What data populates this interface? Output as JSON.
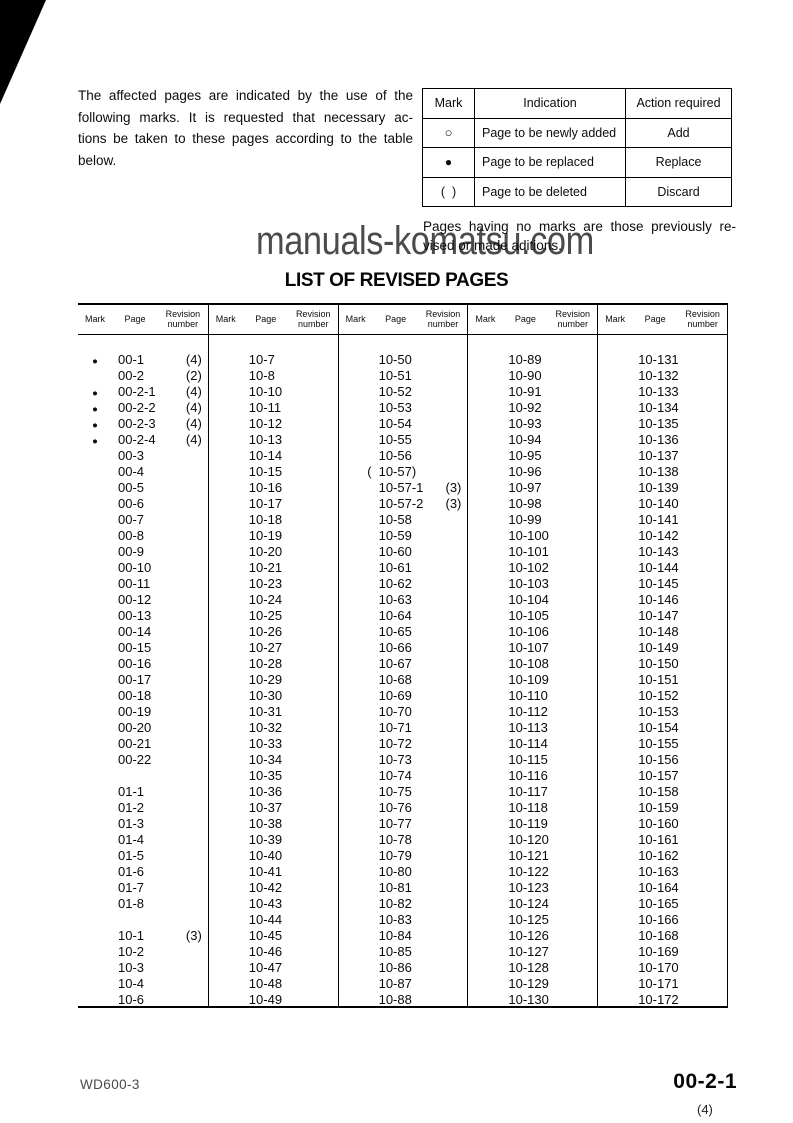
{
  "intro": {
    "lines": [
      "The affected pages are indicated by the use of the",
      "following marks. It is requested that necessary ac-",
      "tions be taken to these pages according to the table",
      "below."
    ]
  },
  "marks_table": {
    "headers": {
      "mark": "Mark",
      "indication": "Indication",
      "action": "Action required"
    },
    "rows": [
      {
        "mark": "○",
        "indication": "Page to be newly added",
        "action": "Add"
      },
      {
        "mark": "●",
        "indication": "Page to be replaced",
        "action": "Replace"
      },
      {
        "mark": "(  )",
        "indication": "Page to be deleted",
        "action": "Discard"
      }
    ]
  },
  "note": {
    "lines": [
      "Pages having no marks are those previously re-",
      "vised or made aditions."
    ]
  },
  "watermark": "manuals-komatsu.com",
  "list_title": "LIST OF REVISED PAGES",
  "revised_table": {
    "column_headers": {
      "mark": "Mark",
      "page": "Page",
      "revision_line1": "Revision",
      "revision_line2": "number"
    },
    "groups": [
      [
        [
          "●",
          "00-1",
          "(4)"
        ],
        [
          "",
          "00-2",
          "(2)"
        ],
        [
          "●",
          "00-2-1",
          "(4)"
        ],
        [
          "●",
          "00-2-2",
          "(4)"
        ],
        [
          "●",
          "00-2-3",
          "(4)"
        ],
        [
          "●",
          "00-2-4",
          "(4)"
        ],
        [
          "",
          "00-3",
          ""
        ],
        [
          "",
          "00-4",
          ""
        ],
        [
          "",
          "00-5",
          ""
        ],
        [
          "",
          "00-6",
          ""
        ],
        [
          "",
          "00-7",
          ""
        ],
        [
          "",
          "00-8",
          ""
        ],
        [
          "",
          "00-9",
          ""
        ],
        [
          "",
          "00-10",
          ""
        ],
        [
          "",
          "00-11",
          ""
        ],
        [
          "",
          "00-12",
          ""
        ],
        [
          "",
          "00-13",
          ""
        ],
        [
          "",
          "00-14",
          ""
        ],
        [
          "",
          "00-15",
          ""
        ],
        [
          "",
          "00-16",
          ""
        ],
        [
          "",
          "00-17",
          ""
        ],
        [
          "",
          "00-18",
          ""
        ],
        [
          "",
          "00-19",
          ""
        ],
        [
          "",
          "00-20",
          ""
        ],
        [
          "",
          "00-21",
          ""
        ],
        [
          "",
          "00-22",
          ""
        ],
        [
          "",
          "",
          ""
        ],
        [
          "",
          "01-1",
          ""
        ],
        [
          "",
          "01-2",
          ""
        ],
        [
          "",
          "01-3",
          ""
        ],
        [
          "",
          "01-4",
          ""
        ],
        [
          "",
          "01-5",
          ""
        ],
        [
          "",
          "01-6",
          ""
        ],
        [
          "",
          "01-7",
          ""
        ],
        [
          "",
          "01-8",
          ""
        ],
        [
          "",
          "",
          ""
        ],
        [
          "",
          "10-1",
          "(3)"
        ],
        [
          "",
          "10-2",
          ""
        ],
        [
          "",
          "10-3",
          ""
        ],
        [
          "",
          "10-4",
          ""
        ],
        [
          "",
          "10-6",
          ""
        ]
      ],
      [
        [
          "",
          "10-7",
          ""
        ],
        [
          "",
          "10-8",
          ""
        ],
        [
          "",
          "10-10",
          ""
        ],
        [
          "",
          "10-11",
          ""
        ],
        [
          "",
          "10-12",
          ""
        ],
        [
          "",
          "10-13",
          ""
        ],
        [
          "",
          "10-14",
          ""
        ],
        [
          "",
          "10-15",
          ""
        ],
        [
          "",
          "10-16",
          ""
        ],
        [
          "",
          "10-17",
          ""
        ],
        [
          "",
          "10-18",
          ""
        ],
        [
          "",
          "10-19",
          ""
        ],
        [
          "",
          "10-20",
          ""
        ],
        [
          "",
          "10-21",
          ""
        ],
        [
          "",
          "10-23",
          ""
        ],
        [
          "",
          "10-24",
          ""
        ],
        [
          "",
          "10-25",
          ""
        ],
        [
          "",
          "10-26",
          ""
        ],
        [
          "",
          "10-27",
          ""
        ],
        [
          "",
          "10-28",
          ""
        ],
        [
          "",
          "10-29",
          ""
        ],
        [
          "",
          "10-30",
          ""
        ],
        [
          "",
          "10-31",
          ""
        ],
        [
          "",
          "10-32",
          ""
        ],
        [
          "",
          "10-33",
          ""
        ],
        [
          "",
          "10-34",
          ""
        ],
        [
          "",
          "10-35",
          ""
        ],
        [
          "",
          "10-36",
          ""
        ],
        [
          "",
          "10-37",
          ""
        ],
        [
          "",
          "10-38",
          ""
        ],
        [
          "",
          "10-39",
          ""
        ],
        [
          "",
          "10-40",
          ""
        ],
        [
          "",
          "10-41",
          ""
        ],
        [
          "",
          "10-42",
          ""
        ],
        [
          "",
          "10-43",
          ""
        ],
        [
          "",
          "10-44",
          ""
        ],
        [
          "",
          "10-45",
          ""
        ],
        [
          "",
          "10-46",
          ""
        ],
        [
          "",
          "10-47",
          ""
        ],
        [
          "",
          "10-48",
          ""
        ],
        [
          "",
          "10-49",
          ""
        ]
      ],
      [
        [
          "",
          "10-50",
          ""
        ],
        [
          "",
          "10-51",
          ""
        ],
        [
          "",
          "10-52",
          ""
        ],
        [
          "",
          "10-53",
          ""
        ],
        [
          "",
          "10-54",
          ""
        ],
        [
          "",
          "10-55",
          ""
        ],
        [
          "",
          "10-56",
          ""
        ],
        [
          "(",
          "10-57)",
          ""
        ],
        [
          "",
          "10-57-1",
          "(3)"
        ],
        [
          "",
          "10-57-2",
          "(3)"
        ],
        [
          "",
          "10-58",
          ""
        ],
        [
          "",
          "10-59",
          ""
        ],
        [
          "",
          "10-60",
          ""
        ],
        [
          "",
          "10-61",
          ""
        ],
        [
          "",
          "10-62",
          ""
        ],
        [
          "",
          "10-63",
          ""
        ],
        [
          "",
          "10-64",
          ""
        ],
        [
          "",
          "10-65",
          ""
        ],
        [
          "",
          "10-66",
          ""
        ],
        [
          "",
          "10-67",
          ""
        ],
        [
          "",
          "10-68",
          ""
        ],
        [
          "",
          "10-69",
          ""
        ],
        [
          "",
          "10-70",
          ""
        ],
        [
          "",
          "10-71",
          ""
        ],
        [
          "",
          "10-72",
          ""
        ],
        [
          "",
          "10-73",
          ""
        ],
        [
          "",
          "10-74",
          ""
        ],
        [
          "",
          "10-75",
          ""
        ],
        [
          "",
          "10-76",
          ""
        ],
        [
          "",
          "10-77",
          ""
        ],
        [
          "",
          "10-78",
          ""
        ],
        [
          "",
          "10-79",
          ""
        ],
        [
          "",
          "10-80",
          ""
        ],
        [
          "",
          "10-81",
          ""
        ],
        [
          "",
          "10-82",
          ""
        ],
        [
          "",
          "10-83",
          ""
        ],
        [
          "",
          "10-84",
          ""
        ],
        [
          "",
          "10-85",
          ""
        ],
        [
          "",
          "10-86",
          ""
        ],
        [
          "",
          "10-87",
          ""
        ],
        [
          "",
          "10-88",
          ""
        ]
      ],
      [
        [
          "",
          "10-89",
          ""
        ],
        [
          "",
          "10-90",
          ""
        ],
        [
          "",
          "10-91",
          ""
        ],
        [
          "",
          "10-92",
          ""
        ],
        [
          "",
          "10-93",
          ""
        ],
        [
          "",
          "10-94",
          ""
        ],
        [
          "",
          "10-95",
          ""
        ],
        [
          "",
          "10-96",
          ""
        ],
        [
          "",
          "10-97",
          ""
        ],
        [
          "",
          "10-98",
          ""
        ],
        [
          "",
          "10-99",
          ""
        ],
        [
          "",
          "10-100",
          ""
        ],
        [
          "",
          "10-101",
          ""
        ],
        [
          "",
          "10-102",
          ""
        ],
        [
          "",
          "10-103",
          ""
        ],
        [
          "",
          "10-104",
          ""
        ],
        [
          "",
          "10-105",
          ""
        ],
        [
          "",
          "10-106",
          ""
        ],
        [
          "",
          "10-107",
          ""
        ],
        [
          "",
          "10-108",
          ""
        ],
        [
          "",
          "10-109",
          ""
        ],
        [
          "",
          "10-110",
          ""
        ],
        [
          "",
          "10-112",
          ""
        ],
        [
          "",
          "10-113",
          ""
        ],
        [
          "",
          "10-114",
          ""
        ],
        [
          "",
          "10-115",
          ""
        ],
        [
          "",
          "10-116",
          ""
        ],
        [
          "",
          "10-117",
          ""
        ],
        [
          "",
          "10-118",
          ""
        ],
        [
          "",
          "10-119",
          ""
        ],
        [
          "",
          "10-120",
          ""
        ],
        [
          "",
          "10-121",
          ""
        ],
        [
          "",
          "10-122",
          ""
        ],
        [
          "",
          "10-123",
          ""
        ],
        [
          "",
          "10-124",
          ""
        ],
        [
          "",
          "10-125",
          ""
        ],
        [
          "",
          "10-126",
          ""
        ],
        [
          "",
          "10-127",
          ""
        ],
        [
          "",
          "10-128",
          ""
        ],
        [
          "",
          "10-129",
          ""
        ],
        [
          "",
          "10-130",
          ""
        ]
      ],
      [
        [
          "",
          "10-131",
          ""
        ],
        [
          "",
          "10-132",
          ""
        ],
        [
          "",
          "10-133",
          ""
        ],
        [
          "",
          "10-134",
          ""
        ],
        [
          "",
          "10-135",
          ""
        ],
        [
          "",
          "10-136",
          ""
        ],
        [
          "",
          "10-137",
          ""
        ],
        [
          "",
          "10-138",
          ""
        ],
        [
          "",
          "10-139",
          ""
        ],
        [
          "",
          "10-140",
          ""
        ],
        [
          "",
          "10-141",
          ""
        ],
        [
          "",
          "10-142",
          ""
        ],
        [
          "",
          "10-143",
          ""
        ],
        [
          "",
          "10-144",
          ""
        ],
        [
          "",
          "10-145",
          ""
        ],
        [
          "",
          "10-146",
          ""
        ],
        [
          "",
          "10-147",
          ""
        ],
        [
          "",
          "10-148",
          ""
        ],
        [
          "",
          "10-149",
          ""
        ],
        [
          "",
          "10-150",
          ""
        ],
        [
          "",
          "10-151",
          ""
        ],
        [
          "",
          "10-152",
          ""
        ],
        [
          "",
          "10-153",
          ""
        ],
        [
          "",
          "10-154",
          ""
        ],
        [
          "",
          "10-155",
          ""
        ],
        [
          "",
          "10-156",
          ""
        ],
        [
          "",
          "10-157",
          ""
        ],
        [
          "",
          "10-158",
          ""
        ],
        [
          "",
          "10-159",
          ""
        ],
        [
          "",
          "10-160",
          ""
        ],
        [
          "",
          "10-161",
          ""
        ],
        [
          "",
          "10-162",
          ""
        ],
        [
          "",
          "10-163",
          ""
        ],
        [
          "",
          "10-164",
          ""
        ],
        [
          "",
          "10-165",
          ""
        ],
        [
          "",
          "10-166",
          ""
        ],
        [
          "",
          "10-168",
          ""
        ],
        [
          "",
          "10-169",
          ""
        ],
        [
          "",
          "10-170",
          ""
        ],
        [
          "",
          "10-171",
          ""
        ],
        [
          "",
          "10-172",
          ""
        ]
      ]
    ]
  },
  "footer": {
    "model": "WD600-3",
    "page_number": "00-2-1",
    "revision": "(4)"
  },
  "colors": {
    "ink": "#0a0a0a",
    "watermark_gray": "#4b4b4b"
  }
}
